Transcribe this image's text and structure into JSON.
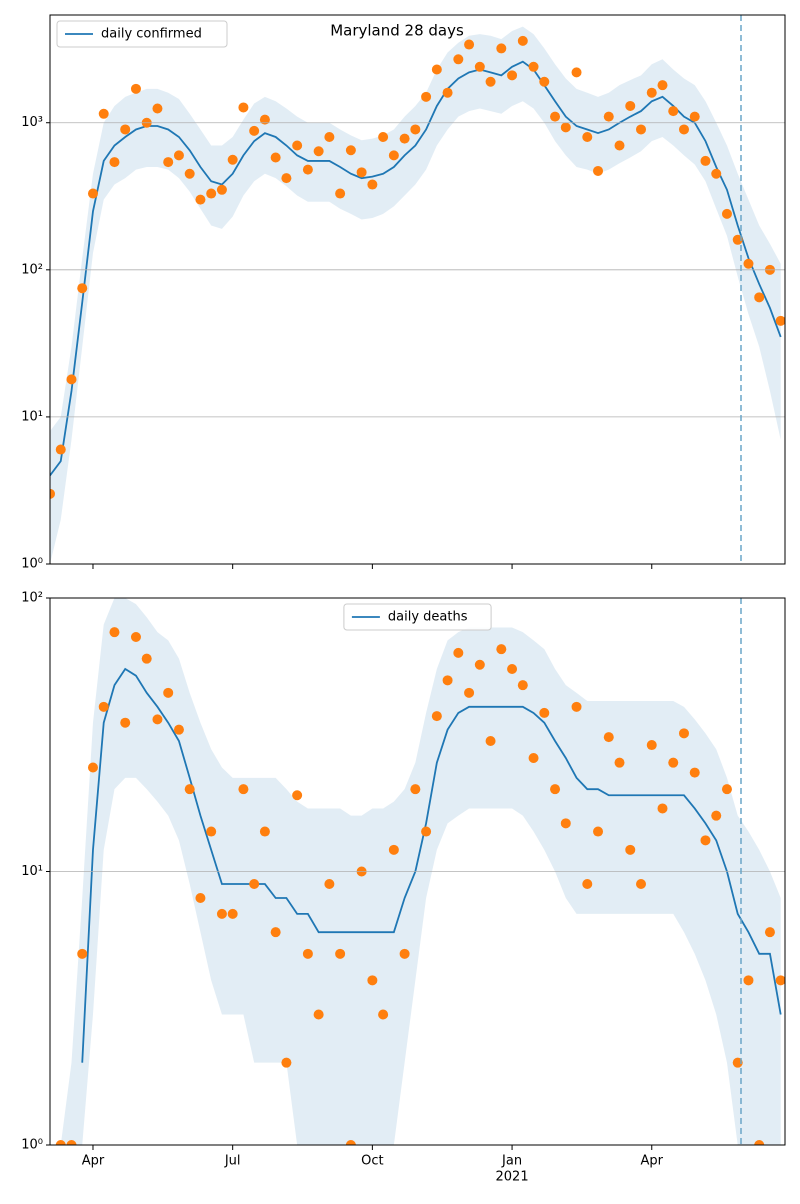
{
  "chart_data": [
    {
      "type": "line",
      "title": "Maryland 28 days",
      "yscale": "log",
      "grid": true,
      "legend": "upper left",
      "ylim": [
        1,
        5400
      ],
      "yticks": [
        {
          "value": 1,
          "label": "10⁰"
        },
        {
          "value": 10,
          "label": "10¹"
        },
        {
          "value": 100,
          "label": "10²"
        },
        {
          "value": 1000,
          "label": "10³"
        }
      ],
      "band": {
        "color": "#1f77b4",
        "upper": [
          8,
          10,
          30,
          120,
          450,
          1000,
          1300,
          1500,
          1600,
          1700,
          1700,
          1600,
          1450,
          1150,
          900,
          700,
          700,
          800,
          1050,
          1350,
          1500,
          1400,
          1250,
          1100,
          1000,
          1000,
          1000,
          900,
          820,
          760,
          780,
          820,
          900,
          1100,
          1300,
          1600,
          2300,
          3000,
          3500,
          3900,
          4000,
          3900,
          3700,
          4200,
          4500,
          4000,
          3200,
          2500,
          2000,
          1700,
          1600,
          1500,
          1600,
          1800,
          1950,
          2100,
          2500,
          2700,
          2300,
          2000,
          1800,
          1400,
          1000,
          700,
          450,
          300,
          200,
          150,
          110
        ],
        "lower": [
          1,
          2,
          7,
          30,
          130,
          300,
          380,
          420,
          480,
          500,
          500,
          480,
          420,
          340,
          260,
          200,
          190,
          230,
          320,
          400,
          450,
          420,
          370,
          320,
          290,
          290,
          290,
          260,
          240,
          220,
          225,
          240,
          270,
          320,
          380,
          480,
          700,
          900,
          1100,
          1200,
          1250,
          1200,
          1150,
          1300,
          1400,
          1250,
          1000,
          750,
          600,
          500,
          480,
          450,
          480,
          530,
          580,
          640,
          750,
          800,
          700,
          600,
          520,
          400,
          260,
          170,
          90,
          50,
          30,
          15,
          7
        ]
      },
      "series": [
        {
          "name": "daily confirmed",
          "color": "#1f77b4",
          "values": [
            4,
            5,
            15,
            60,
            250,
            550,
            700,
            800,
            900,
            950,
            950,
            900,
            800,
            650,
            500,
            400,
            380,
            450,
            600,
            750,
            850,
            800,
            700,
            600,
            550,
            550,
            550,
            500,
            450,
            420,
            430,
            450,
            500,
            600,
            700,
            900,
            1300,
            1700,
            2000,
            2200,
            2300,
            2200,
            2100,
            2400,
            2600,
            2300,
            1800,
            1400,
            1100,
            950,
            900,
            850,
            900,
            1000,
            1100,
            1200,
            1400,
            1500,
            1300,
            1100,
            1000,
            750,
            500,
            350,
            200,
            120,
            80,
            55,
            35
          ]
        },
        {
          "color": "#ff7f0e",
          "values": [
            3,
            6,
            18,
            75,
            330,
            1150,
            540,
            900,
            1700,
            1000,
            1250,
            540,
            600,
            450,
            300,
            330,
            350,
            560,
            1270,
            880,
            1050,
            580,
            420,
            700,
            480,
            640,
            800,
            330,
            650,
            460,
            380,
            800,
            600,
            780,
            900,
            1500,
            2300,
            1600,
            2700,
            3400,
            2400,
            1900,
            3200,
            2100,
            3600,
            2400,
            1900,
            1100,
            930,
            2200,
            800,
            470,
            1100,
            700,
            1300,
            900,
            1600,
            1800,
            1200,
            900,
            1100,
            550,
            450,
            240,
            160,
            110,
            65,
            100,
            45
          ]
        }
      ]
    },
    {
      "type": "line",
      "yscale": "log",
      "grid": true,
      "legend": "upper center",
      "ylim": [
        1,
        100
      ],
      "yticks": [
        {
          "value": 1,
          "label": "10⁰"
        },
        {
          "value": 10,
          "label": "10¹"
        },
        {
          "value": 100,
          "label": "10²"
        }
      ],
      "categories": [
        null,
        null,
        null,
        null,
        "Apr",
        null,
        null,
        null,
        null,
        null,
        null,
        null,
        null,
        null,
        null,
        null,
        null,
        "Jul",
        null,
        null,
        null,
        null,
        null,
        null,
        null,
        null,
        null,
        null,
        null,
        null,
        "Oct",
        null,
        null,
        null,
        null,
        null,
        null,
        null,
        null,
        null,
        null,
        null,
        null,
        "Jan",
        null,
        null,
        null,
        null,
        null,
        null,
        null,
        null,
        null,
        null,
        null,
        null,
        "Apr",
        null,
        null,
        null,
        null,
        null,
        null,
        null,
        null,
        null,
        null,
        null,
        null
      ],
      "x_sublabel": "2021",
      "band": {
        "color": "#1f77b4",
        "upper": [
          1,
          1,
          2,
          8,
          35,
          80,
          100,
          100,
          95,
          85,
          75,
          70,
          60,
          45,
          35,
          28,
          24,
          22,
          22,
          22,
          22,
          22,
          20,
          18,
          17,
          17,
          17,
          17,
          16,
          16,
          17,
          17,
          18,
          20,
          25,
          38,
          55,
          70,
          75,
          78,
          78,
          78,
          78,
          78,
          75,
          70,
          65,
          55,
          48,
          45,
          42,
          42,
          42,
          42,
          42,
          42,
          42,
          42,
          42,
          40,
          36,
          32,
          28,
          22,
          16,
          14,
          12,
          10,
          8
        ],
        "lower": [
          1,
          1,
          1,
          1,
          3,
          12,
          20,
          22,
          22,
          20,
          18,
          16,
          13,
          9,
          6,
          4,
          3,
          3,
          3,
          2,
          2,
          2,
          2,
          1,
          1,
          1,
          1,
          1,
          1,
          1,
          1,
          1,
          1,
          2,
          4,
          8,
          12,
          15,
          16,
          17,
          17,
          17,
          17,
          17,
          16,
          14,
          12,
          10,
          8,
          7,
          7,
          7,
          7,
          7,
          7,
          7,
          7,
          7,
          7,
          6,
          5,
          4,
          3,
          2,
          1,
          1,
          1,
          1,
          1
        ]
      },
      "series": [
        {
          "name": "daily deaths",
          "color": "#1f77b4",
          "values": [
            null,
            null,
            null,
            2,
            12,
            35,
            48,
            55,
            52,
            45,
            40,
            35,
            30,
            22,
            16,
            12,
            9,
            9,
            9,
            9,
            9,
            8,
            8,
            7,
            7,
            6,
            6,
            6,
            6,
            6,
            6,
            6,
            6,
            8,
            10,
            15,
            25,
            33,
            38,
            40,
            40,
            40,
            40,
            40,
            40,
            38,
            35,
            30,
            26,
            22,
            20,
            20,
            19,
            19,
            19,
            19,
            19,
            19,
            19,
            19,
            17,
            15,
            13,
            10,
            7,
            6,
            5,
            5,
            3
          ]
        },
        {
          "color": "#ff7f0e",
          "values": [
            null,
            1,
            1,
            5,
            24,
            40,
            75,
            35,
            72,
            60,
            36,
            45,
            33,
            20,
            8,
            14,
            7,
            7,
            20,
            9,
            14,
            6,
            2,
            19,
            5,
            3,
            9,
            5,
            1,
            10,
            4,
            3,
            12,
            5,
            20,
            14,
            37,
            50,
            63,
            45,
            57,
            30,
            65,
            55,
            48,
            26,
            38,
            20,
            15,
            40,
            9,
            14,
            31,
            25,
            12,
            9,
            29,
            17,
            25,
            32,
            23,
            13,
            16,
            20,
            2,
            4,
            1,
            6,
            4
          ]
        }
      ]
    }
  ]
}
